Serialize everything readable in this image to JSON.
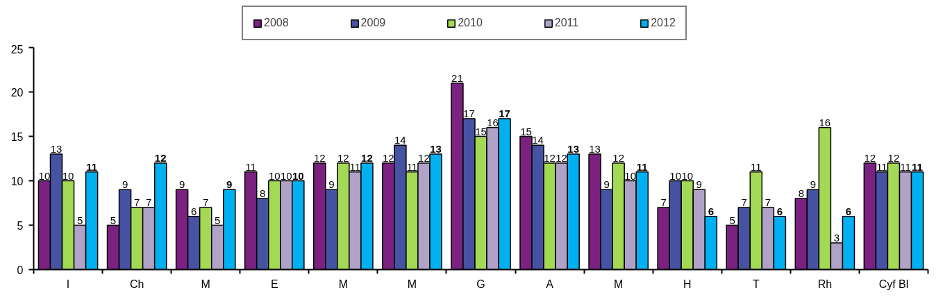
{
  "chart_data": {
    "type": "bar",
    "categories": [
      "I",
      "Ch",
      "M",
      "E",
      "M",
      "M",
      "G",
      "A",
      "M",
      "H",
      "T",
      "Rh",
      "Cyf Bl"
    ],
    "series": [
      {
        "name": "2008",
        "color": "#7b2180",
        "values": [
          10,
          5,
          9,
          11,
          12,
          12,
          21,
          15,
          13,
          7,
          5,
          8,
          12
        ]
      },
      {
        "name": "2009",
        "color": "#4653a3",
        "values": [
          13,
          9,
          6,
          8,
          9,
          14,
          17,
          14,
          9,
          10,
          7,
          9,
          11
        ]
      },
      {
        "name": "2010",
        "color": "#a3d955",
        "values": [
          10,
          7,
          7,
          10,
          12,
          11,
          15,
          12,
          12,
          10,
          11,
          16,
          12
        ]
      },
      {
        "name": "2011",
        "color": "#b1a2c8",
        "values": [
          5,
          7,
          5,
          10,
          11,
          12,
          16,
          12,
          10,
          9,
          7,
          3,
          11
        ]
      },
      {
        "name": "2012",
        "color": "#00b0f0",
        "values": [
          11,
          12,
          9,
          10,
          12,
          13,
          17,
          13,
          11,
          6,
          6,
          6,
          11
        ]
      }
    ],
    "ylim": [
      0,
      25
    ],
    "yticks": [
      0,
      5,
      10,
      15,
      20,
      25
    ],
    "data_labels": true,
    "legend": "top",
    "grid": false
  }
}
